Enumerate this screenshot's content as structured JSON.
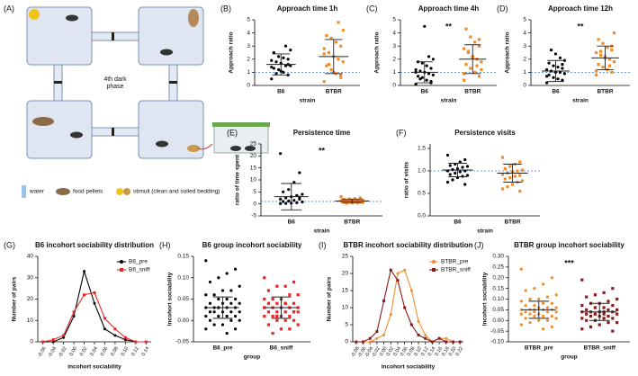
{
  "diagram": {
    "label": "(A)",
    "center_text": [
      "4th dark",
      "phase"
    ],
    "legend": [
      "water",
      "food pellets",
      "stimuli (clean and soiled bedding)"
    ]
  },
  "chart_data": [
    {
      "type": "strip",
      "panel_label": "(B)",
      "title": "Approach time 1h",
      "y_label": "Approach ratio",
      "x_label": "strain",
      "ylim": [
        0,
        5
      ],
      "yticks": [
        0,
        1,
        2,
        3,
        4,
        5
      ],
      "reference_line": 1,
      "groups": [
        {
          "name": "B6",
          "color": "#000000",
          "marker": "circle",
          "values": [
            0.5,
            0.8,
            1.0,
            1.2,
            1.3,
            1.5,
            1.5,
            1.7,
            1.8,
            1.9,
            2.0,
            2.1,
            2.2,
            2.5,
            2.7,
            3.0,
            1.1,
            0.9,
            1.4,
            1.6
          ],
          "mean": 1.6,
          "sd": 0.8
        },
        {
          "name": "BTBR",
          "color": "#f28c28",
          "marker": "square",
          "values": [
            0.3,
            0.6,
            0.9,
            1.2,
            1.5,
            1.8,
            2.0,
            2.2,
            2.5,
            2.8,
            3.0,
            3.3,
            3.6,
            3.8,
            4.2,
            4.8,
            1.0,
            1.6,
            2.4,
            0.8
          ],
          "mean": 2.2,
          "sd": 1.3
        }
      ]
    },
    {
      "type": "strip",
      "panel_label": "(C)",
      "title": "Approach time 4h",
      "y_label": "Approach ratio",
      "x_label": "strain",
      "annotation": "**",
      "ylim": [
        0,
        5
      ],
      "yticks": [
        0,
        1,
        2,
        3,
        4,
        5
      ],
      "reference_line": 1,
      "groups": [
        {
          "name": "B6",
          "color": "#000000",
          "marker": "circle",
          "values": [
            0.1,
            0.3,
            0.4,
            0.6,
            0.7,
            0.8,
            0.9,
            1.0,
            1.1,
            1.2,
            1.3,
            1.5,
            1.7,
            1.8,
            2.0,
            2.2,
            4.5,
            0.5,
            1.0,
            0.2
          ],
          "mean": 1.0,
          "sd": 0.8
        },
        {
          "name": "BTBR",
          "color": "#f28c28",
          "marker": "square",
          "values": [
            0.4,
            0.7,
            1.0,
            1.3,
            1.6,
            1.8,
            2.0,
            2.2,
            2.5,
            2.8,
            3.0,
            3.3,
            3.7,
            4.3,
            1.2,
            1.5,
            2.1,
            2.6,
            0.9,
            3.5
          ],
          "mean": 2.0,
          "sd": 1.1
        }
      ]
    },
    {
      "type": "strip",
      "panel_label": "(D)",
      "title": "Approach time 12h",
      "y_label": "Approach ratio",
      "x_label": "strain",
      "annotation": "**",
      "ylim": [
        0,
        5
      ],
      "yticks": [
        0,
        1,
        2,
        3,
        4,
        5
      ],
      "reference_line": 1,
      "groups": [
        {
          "name": "B6",
          "color": "#000000",
          "marker": "circle",
          "values": [
            0.2,
            0.4,
            0.5,
            0.6,
            0.8,
            0.9,
            1.0,
            1.0,
            1.1,
            1.2,
            1.3,
            1.4,
            1.5,
            1.7,
            1.9,
            2.1,
            2.4,
            2.7,
            0.7,
            1.6
          ],
          "mean": 1.1,
          "sd": 0.8
        },
        {
          "name": "BTBR",
          "color": "#f28c28",
          "marker": "square",
          "values": [
            0.8,
            1.0,
            1.2,
            1.4,
            1.6,
            1.8,
            2.0,
            2.1,
            2.3,
            2.5,
            2.7,
            2.9,
            3.2,
            3.5,
            4.0,
            1.5,
            2.2,
            2.6,
            1.1,
            3.0
          ],
          "mean": 2.1,
          "sd": 0.9
        }
      ]
    },
    {
      "type": "strip",
      "panel_label": "(E)",
      "title": "Persistence time",
      "y_label": "ratio of time spent",
      "x_label": "strain",
      "annotation": "**",
      "ylim": [
        -5,
        25
      ],
      "yticks": [
        -5,
        0,
        5,
        10,
        15,
        20,
        25
      ],
      "reference_line": 1,
      "groups": [
        {
          "name": "B6",
          "color": "#000000",
          "marker": "circle",
          "values": [
            21,
            13,
            9,
            6,
            5,
            4,
            3.5,
            3,
            2.5,
            2,
            2,
            1.5,
            1.2,
            1,
            0.8,
            0.5,
            0.3,
            0.2,
            0.1,
            2.8
          ],
          "mean": 3,
          "sd": 5.5
        },
        {
          "name": "BTBR",
          "color": "#f28c28",
          "marker": "square",
          "values": [
            3,
            2.5,
            2.2,
            2,
            1.8,
            1.6,
            1.5,
            1.3,
            1.2,
            1.1,
            1,
            0.9,
            0.8,
            0.7,
            0.6,
            0.5,
            0.4,
            0.3,
            1.4,
            0.9
          ],
          "mean": 1.2,
          "sd": 0.8
        }
      ]
    },
    {
      "type": "strip",
      "panel_label": "(F)",
      "title": "Persistence visits",
      "y_label": "ratio of visits",
      "x_label": "strain",
      "ylim": [
        0,
        1.6
      ],
      "yticks": [
        {
          "value": 0,
          "label": "0.0"
        },
        0.5,
        {
          "value": 1,
          "label": "1.0"
        },
        1.5
      ],
      "reference_line": 1,
      "groups": [
        {
          "name": "B6",
          "color": "#000000",
          "marker": "circle",
          "values": [
            1.35,
            1.25,
            1.2,
            1.15,
            1.12,
            1.1,
            1.08,
            1.05,
            1.03,
            1.0,
            1.0,
            0.98,
            0.95,
            0.92,
            0.9,
            0.88,
            0.85,
            0.8,
            0.75,
            0.7
          ],
          "mean": 1.02,
          "sd": 0.15
        },
        {
          "name": "BTBR",
          "color": "#f28c28",
          "marker": "square",
          "values": [
            1.3,
            1.2,
            1.15,
            1.1,
            1.05,
            1.02,
            1.0,
            0.98,
            0.95,
            0.92,
            0.9,
            0.88,
            0.85,
            0.82,
            0.78,
            0.75,
            0.7,
            0.65,
            0.6,
            0.55
          ],
          "mean": 0.95,
          "sd": 0.2
        }
      ]
    },
    {
      "type": "line",
      "panel_label": "(G)",
      "title": "B6 incohort sociability distribution",
      "y_label": "Number of pairs",
      "x_label": "incohort sociability",
      "x": [
        -0.06,
        -0.04,
        -0.02,
        0,
        0.02,
        0.04,
        0.06,
        0.08,
        0.1,
        0.12,
        0.14
      ],
      "xlim": [
        -0.07,
        0.15
      ],
      "xticks": [
        -0.06,
        -0.04,
        -0.02,
        {
          "value": 0,
          "label": "0.00"
        },
        0.02,
        0.04,
        0.06,
        0.08,
        {
          "value": 0.1,
          "label": "0.10"
        },
        0.12,
        0.14
      ],
      "ylim": [
        0,
        40
      ],
      "yticks": [
        0,
        10,
        20,
        30,
        40
      ],
      "series": [
        {
          "name": "B6_pre",
          "color": "#000000",
          "marker": "circle",
          "values": [
            0,
            0,
            2,
            12,
            33,
            18,
            6,
            3,
            1,
            0,
            0
          ]
        },
        {
          "name": "B6_sniff",
          "color": "#e8262a",
          "marker": "square",
          "values": [
            0,
            1,
            3,
            14,
            22,
            23,
            11,
            6,
            2,
            0,
            0
          ]
        }
      ]
    },
    {
      "type": "strip",
      "panel_label": "(H)",
      "title": "B6 group incohort sociability",
      "y_label": "Incohort sociability",
      "x_label": "group",
      "ylim": [
        -0.05,
        0.15
      ],
      "yticks": [
        -0.05,
        {
          "value": 0,
          "label": "0.00"
        },
        0.05,
        {
          "value": 0.1,
          "label": "0.10"
        },
        0.15
      ],
      "groups": [
        {
          "name": "B6_pre",
          "color": "#000000",
          "marker": "circle",
          "values": [
            0.14,
            0.12,
            0.11,
            0.1,
            0.09,
            0.08,
            0.07,
            0.07,
            0.06,
            0.06,
            0.05,
            0.05,
            0.05,
            0.04,
            0.04,
            0.04,
            0.04,
            0.03,
            0.03,
            0.03,
            0.03,
            0.03,
            0.02,
            0.02,
            0.02,
            0.02,
            0.02,
            0.01,
            0.01,
            0.01,
            0.01,
            0.0,
            0.0,
            0.0,
            -0.01,
            -0.01,
            -0.02,
            -0.02,
            -0.03,
            0.03
          ],
          "mean": 0.03,
          "sd": 0.025
        },
        {
          "name": "B6_sniff",
          "color": "#e8262a",
          "marker": "square",
          "values": [
            0.1,
            0.09,
            0.08,
            0.08,
            0.07,
            0.06,
            0.06,
            0.05,
            0.05,
            0.05,
            0.04,
            0.04,
            0.04,
            0.04,
            0.03,
            0.03,
            0.03,
            0.03,
            0.03,
            0.02,
            0.02,
            0.02,
            0.02,
            0.02,
            0.01,
            0.01,
            0.01,
            0.01,
            0.0,
            0.0,
            0.0,
            -0.01,
            -0.01,
            -0.02,
            -0.02,
            -0.03,
            0.03,
            0.02,
            0.04,
            0.01
          ],
          "mean": 0.03,
          "sd": 0.025
        }
      ]
    },
    {
      "type": "line",
      "panel_label": "(I)",
      "title": "BTBR incohort sociability distribution",
      "y_label": "Number of pairs",
      "x_label": "incohort sociability",
      "x": [
        -0.08,
        -0.06,
        -0.04,
        -0.02,
        0,
        0.02,
        0.04,
        0.06,
        0.08,
        0.1,
        0.12,
        0.14,
        0.16,
        0.18,
        0.2,
        0.22
      ],
      "xlim": [
        -0.09,
        0.23
      ],
      "xticks": [
        -0.08,
        -0.06,
        -0.04,
        -0.02,
        {
          "value": 0,
          "label": "0.00"
        },
        0.02,
        0.04,
        0.06,
        0.08,
        {
          "value": 0.1,
          "label": "0.10"
        },
        0.12,
        0.14,
        0.16,
        0.18,
        {
          "value": 0.2,
          "label": "0.20"
        },
        0.22
      ],
      "ylim": [
        0,
        25
      ],
      "yticks": [
        0,
        5,
        10,
        15,
        20,
        25
      ],
      "series": [
        {
          "name": "BTBR_pre",
          "color": "#f28c28",
          "marker": "circle",
          "values": [
            0,
            0,
            0,
            1,
            2,
            8,
            20,
            21,
            15,
            6,
            2,
            0,
            1,
            1,
            0,
            0
          ]
        },
        {
          "name": "BTBR_sniff",
          "color": "#8b1a1a",
          "marker": "square",
          "values": [
            0,
            0,
            1,
            3,
            12,
            21,
            18,
            10,
            5,
            2,
            1,
            0,
            1,
            0,
            0,
            0
          ]
        }
      ]
    },
    {
      "type": "strip",
      "panel_label": "(J)",
      "title": "BTBR group incohort sociability",
      "y_label": "Incohort sociability",
      "x_label": "group",
      "annotation": "***",
      "ylim": [
        -0.1,
        0.3
      ],
      "yticks": [
        {
          "value": -0.1,
          "label": "-0.10"
        },
        -0.05,
        {
          "value": 0,
          "label": "0.00"
        },
        0.05,
        {
          "value": 0.1,
          "label": "0.10"
        },
        0.15,
        {
          "value": 0.2,
          "label": "0.20"
        },
        0.25,
        {
          "value": 0.3,
          "label": "0.30"
        }
      ],
      "groups": [
        {
          "name": "BTBR_pre",
          "color": "#f28c28",
          "marker": "circle",
          "values": [
            0.24,
            0.2,
            0.17,
            0.15,
            0.14,
            0.12,
            0.11,
            0.1,
            0.1,
            0.09,
            0.08,
            0.08,
            0.07,
            0.07,
            0.06,
            0.06,
            0.06,
            0.05,
            0.05,
            0.05,
            0.05,
            0.04,
            0.04,
            0.04,
            0.04,
            0.03,
            0.03,
            0.03,
            0.02,
            0.02,
            0.02,
            0.01,
            0.01,
            0.0,
            0.0,
            -0.01,
            -0.02,
            -0.03,
            -0.04,
            0.05
          ],
          "mean": 0.05,
          "sd": 0.04
        },
        {
          "name": "BTBR_sniff",
          "color": "#8b1a1a",
          "marker": "square",
          "values": [
            0.19,
            0.15,
            0.13,
            0.12,
            0.11,
            0.1,
            0.09,
            0.08,
            0.08,
            0.07,
            0.07,
            0.06,
            0.06,
            0.05,
            0.05,
            0.05,
            0.04,
            0.04,
            0.04,
            0.04,
            0.03,
            0.03,
            0.03,
            0.03,
            0.02,
            0.02,
            0.02,
            0.01,
            0.01,
            0.01,
            0.0,
            0.0,
            -0.01,
            -0.01,
            -0.02,
            -0.03,
            -0.04,
            -0.05,
            0.04,
            0.03
          ],
          "mean": 0.04,
          "sd": 0.04
        }
      ]
    }
  ]
}
